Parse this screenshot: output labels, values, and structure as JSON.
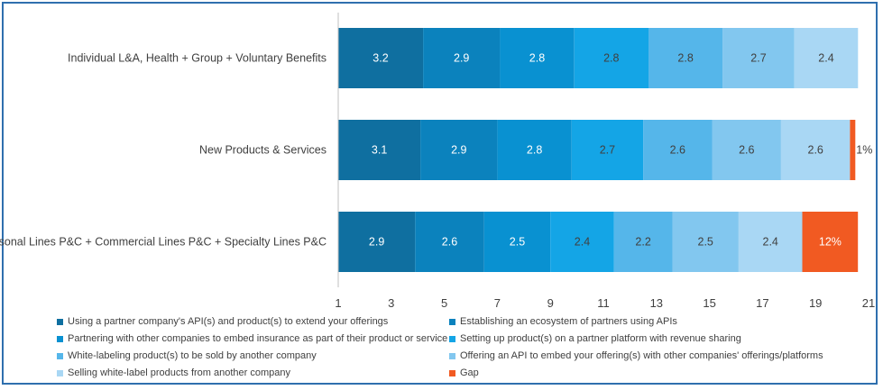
{
  "chart_data": {
    "type": "bar",
    "orientation": "horizontal",
    "stacked": true,
    "categories": [
      "Individual L&A, Health + Group + Voluntary Benefits",
      "New Products & Services",
      "Personal Lines P&C + Commercial Lines P&C + Specialty Lines P&C"
    ],
    "series": [
      {
        "name": "Using a partner company's API(s) and product(s) to extend your offerings",
        "color": "#0f6fa0",
        "values": [
          3.2,
          3.1,
          2.9
        ],
        "labels": [
          "3.2",
          "3.1",
          "2.9"
        ]
      },
      {
        "name": "Establishing an ecosystem of partners using APIs",
        "color": "#0b82bd",
        "values": [
          2.9,
          2.9,
          2.6
        ],
        "labels": [
          "2.9",
          "2.9",
          "2.6"
        ]
      },
      {
        "name": "Partnering with other companies to embed insurance as part of their product or service",
        "color": "#0991d1",
        "values": [
          2.8,
          2.8,
          2.5
        ],
        "labels": [
          "2.8",
          "2.8",
          "2.5"
        ]
      },
      {
        "name": "Setting up product(s) on a partner platform with revenue sharing",
        "color": "#14a5e6",
        "values": [
          2.8,
          2.7,
          2.4
        ],
        "labels": [
          "2.8",
          "2.7",
          "2.4"
        ]
      },
      {
        "name": "White-labeling product(s) to be sold by another company",
        "color": "#55b6ea",
        "values": [
          2.8,
          2.6,
          2.2
        ],
        "labels": [
          "2.8",
          "2.6",
          "2.2"
        ]
      },
      {
        "name": "Offering an API to embed your offering(s) with other companies' offerings/platforms",
        "color": "#82c7ef",
        "values": [
          2.7,
          2.6,
          2.5
        ],
        "labels": [
          "2.7",
          "2.6",
          "2.5"
        ]
      },
      {
        "name": "Selling white-label products from another company",
        "color": "#a9d7f4",
        "values": [
          2.4,
          2.6,
          2.4
        ],
        "labels": [
          "2.4",
          "2.6",
          "2.4"
        ]
      },
      {
        "name": "Gap",
        "color": "#f15a22",
        "values": [
          0,
          0.2,
          2.1
        ],
        "labels": [
          "",
          "1%",
          "12%"
        ]
      }
    ],
    "x_axis": {
      "min": 1,
      "max": 21,
      "ticks": [
        1,
        3,
        5,
        7,
        9,
        11,
        13,
        15,
        17,
        19,
        21
      ]
    },
    "gridlines": false,
    "legend_position": "bottom"
  }
}
